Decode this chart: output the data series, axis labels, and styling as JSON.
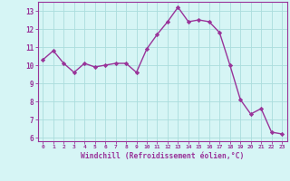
{
  "x": [
    0,
    1,
    2,
    3,
    4,
    5,
    6,
    7,
    8,
    9,
    10,
    11,
    12,
    13,
    14,
    15,
    16,
    17,
    18,
    19,
    20,
    21,
    22,
    23
  ],
  "y": [
    10.3,
    10.8,
    10.1,
    9.6,
    10.1,
    9.9,
    10.0,
    10.1,
    10.1,
    9.6,
    10.9,
    11.7,
    12.4,
    13.2,
    12.4,
    12.5,
    12.4,
    11.8,
    10.0,
    8.1,
    7.3,
    7.6,
    6.3,
    6.2
  ],
  "line_color": "#993399",
  "marker": "D",
  "marker_size": 2.2,
  "bg_color": "#d6f5f5",
  "grid_color": "#aadddd",
  "xlabel": "Windchill (Refroidissement éolien,°C)",
  "xlabel_color": "#993399",
  "tick_color": "#993399",
  "ylim": [
    5.8,
    13.5
  ],
  "xlim": [
    -0.5,
    23.5
  ],
  "yticks": [
    6,
    7,
    8,
    9,
    10,
    11,
    12,
    13
  ],
  "xticks": [
    0,
    1,
    2,
    3,
    4,
    5,
    6,
    7,
    8,
    9,
    10,
    11,
    12,
    13,
    14,
    15,
    16,
    17,
    18,
    19,
    20,
    21,
    22,
    23
  ],
  "spine_color": "#993399",
  "line_width": 1.0
}
